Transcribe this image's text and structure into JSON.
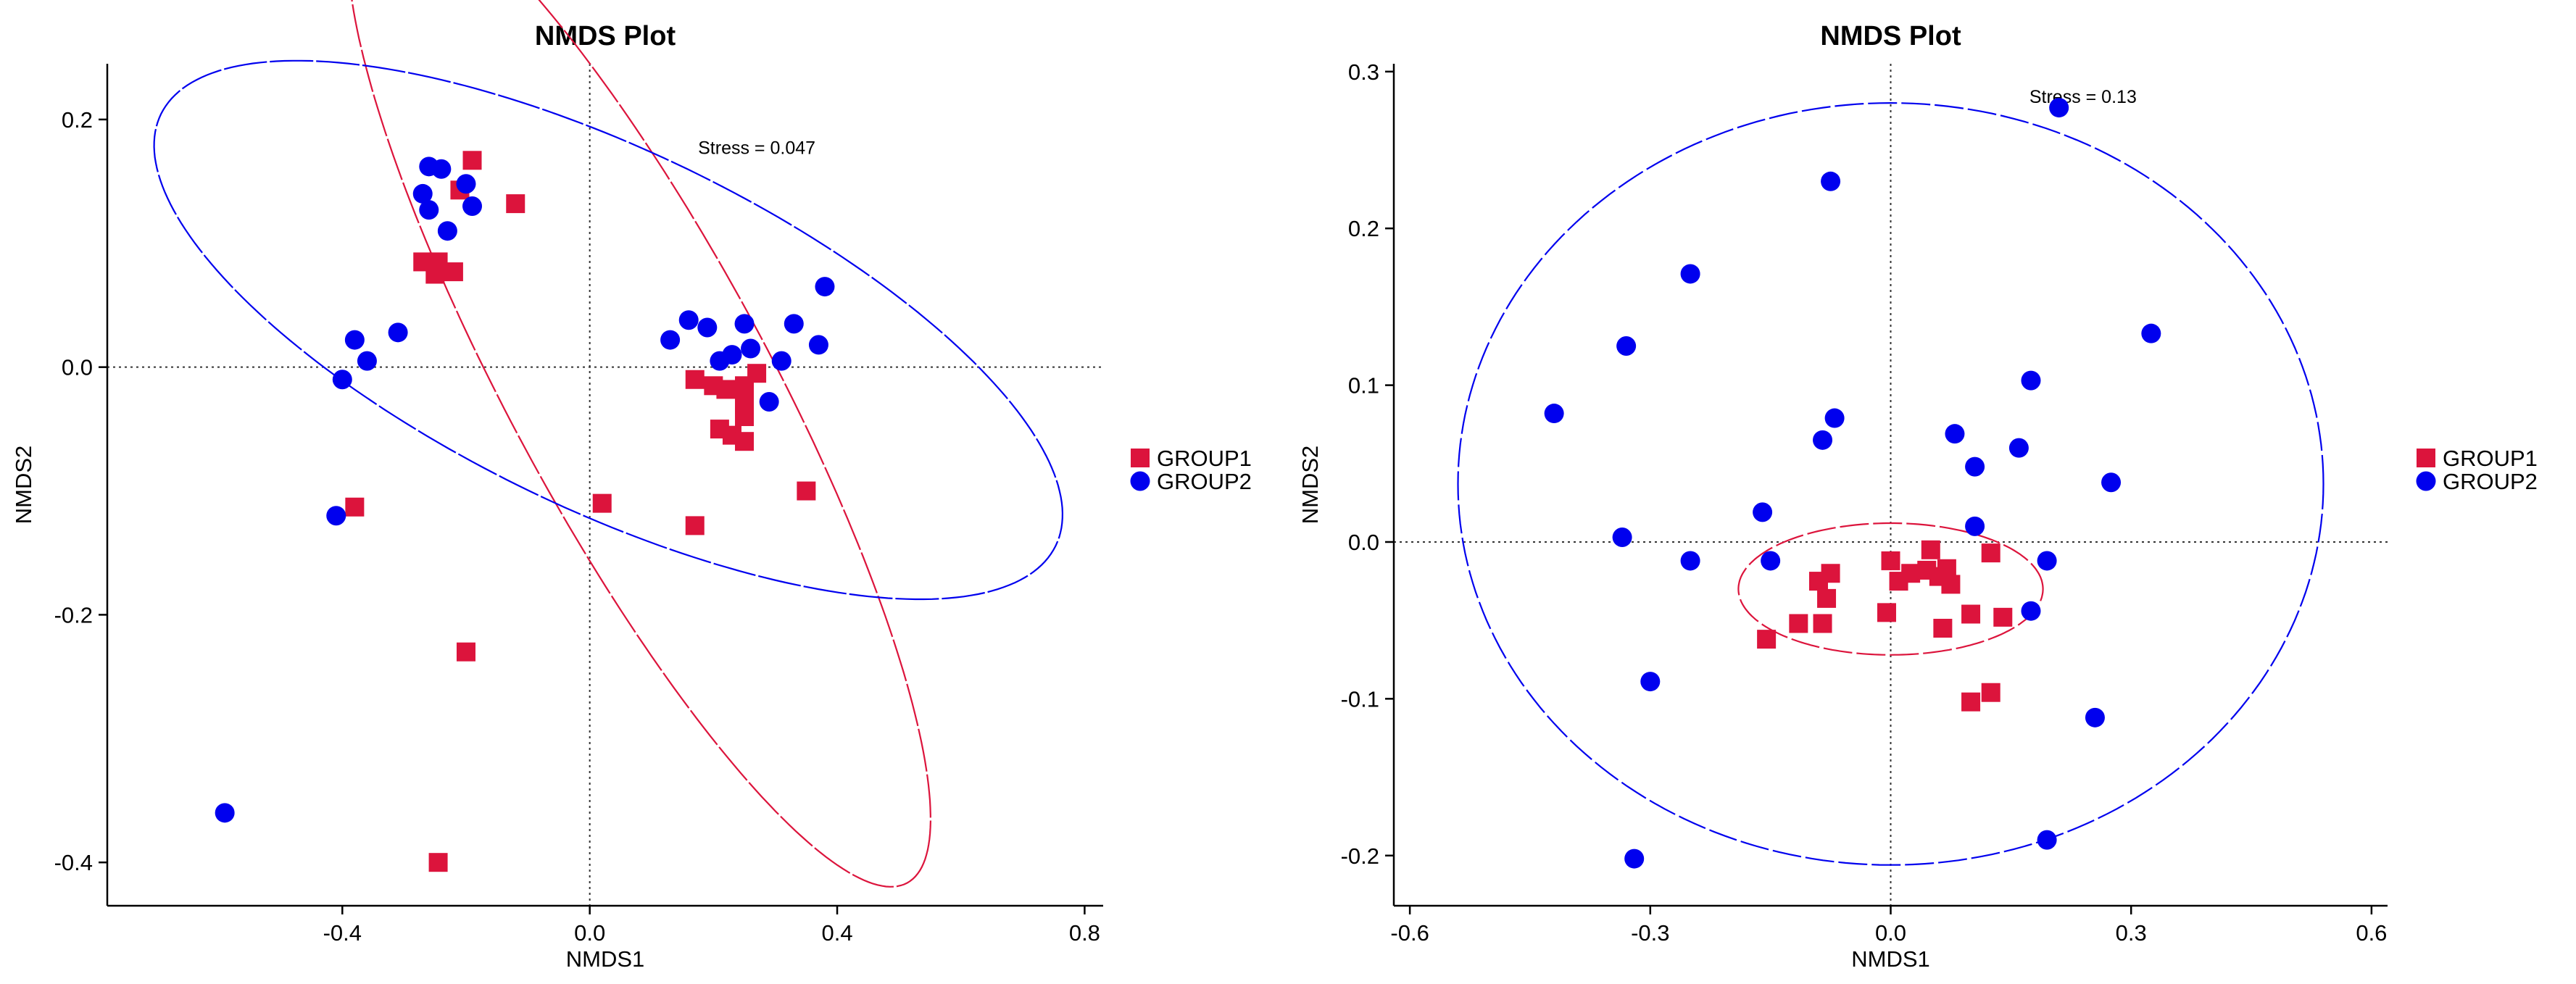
{
  "chart_data": [
    {
      "type": "scatter",
      "title": "NMDS Plot",
      "xlabel": "NMDS1",
      "ylabel": "NMDS2",
      "xlim": [
        -0.78,
        0.83
      ],
      "ylim": [
        -0.435,
        0.245
      ],
      "xticks": [
        -0.4,
        0.0,
        0.4,
        0.8
      ],
      "xtick_labels": [
        "-0.4",
        "0.0",
        "0.4",
        "0.8"
      ],
      "yticks": [
        -0.4,
        -0.2,
        0.0,
        0.2
      ],
      "ytick_labels": [
        "-0.4",
        "-0.2",
        "0.0",
        "0.2"
      ],
      "annotation": "Stress = 0.047",
      "annotation_pos": [
        0.27,
        0.172
      ],
      "zero_lines": true,
      "grid": false,
      "legend_position": "right",
      "series": [
        {
          "name": "GROUP1",
          "marker": "square",
          "color": "#dc143c",
          "points": [
            [
              -0.19,
              0.167
            ],
            [
              -0.21,
              0.143
            ],
            [
              -0.12,
              0.132
            ],
            [
              -0.27,
              0.085
            ],
            [
              -0.245,
              0.085
            ],
            [
              -0.25,
              0.075
            ],
            [
              -0.22,
              0.077
            ],
            [
              0.17,
              -0.01
            ],
            [
              0.2,
              -0.015
            ],
            [
              0.22,
              -0.018
            ],
            [
              0.25,
              -0.015
            ],
            [
              0.27,
              -0.005
            ],
            [
              0.25,
              -0.03
            ],
            [
              0.25,
              -0.04
            ],
            [
              0.21,
              -0.05
            ],
            [
              0.23,
              -0.055
            ],
            [
              0.25,
              -0.06
            ],
            [
              0.35,
              -0.1
            ],
            [
              0.02,
              -0.11
            ],
            [
              0.17,
              -0.128
            ],
            [
              -0.38,
              -0.113
            ],
            [
              -0.2,
              -0.23
            ],
            [
              -0.245,
              -0.4
            ]
          ]
        },
        {
          "name": "GROUP2",
          "marker": "circle",
          "color": "#0000ee",
          "points": [
            [
              -0.26,
              0.162
            ],
            [
              -0.24,
              0.16
            ],
            [
              -0.27,
              0.14
            ],
            [
              -0.2,
              0.148
            ],
            [
              -0.26,
              0.127
            ],
            [
              -0.19,
              0.13
            ],
            [
              -0.23,
              0.11
            ],
            [
              -0.31,
              0.028
            ],
            [
              -0.38,
              0.022
            ],
            [
              -0.36,
              0.005
            ],
            [
              -0.4,
              -0.01
            ],
            [
              0.16,
              0.038
            ],
            [
              0.19,
              0.032
            ],
            [
              0.25,
              0.035
            ],
            [
              0.33,
              0.035
            ],
            [
              0.38,
              0.065
            ],
            [
              0.13,
              0.022
            ],
            [
              0.23,
              0.01
            ],
            [
              0.21,
              0.005
            ],
            [
              0.26,
              0.015
            ],
            [
              0.31,
              0.005
            ],
            [
              0.37,
              0.018
            ],
            [
              0.29,
              -0.028
            ],
            [
              -0.41,
              -0.12
            ],
            [
              -0.59,
              -0.36
            ]
          ]
        }
      ],
      "ellipses": [
        {
          "group": "GROUP1",
          "color": "#dc143c",
          "center": [
            0.08,
            -0.015
          ],
          "semi_axes": [
            0.6,
            0.16
          ],
          "angle_deg": -40
        },
        {
          "group": "GROUP2",
          "color": "#0000ee",
          "center": [
            0.03,
            0.03
          ],
          "semi_axes": [
            0.75,
            0.155
          ],
          "angle_deg": -12
        }
      ]
    },
    {
      "type": "scatter",
      "title": "NMDS Plot",
      "xlabel": "NMDS1",
      "ylabel": "NMDS2",
      "xlim": [
        -0.62,
        0.62
      ],
      "ylim": [
        -0.232,
        0.305
      ],
      "xticks": [
        -0.6,
        -0.3,
        0.0,
        0.3,
        0.6
      ],
      "xtick_labels": [
        "-0.6",
        "-0.3",
        "0.0",
        "0.3",
        "0.6"
      ],
      "yticks": [
        -0.2,
        -0.1,
        0.0,
        0.1,
        0.2,
        0.3
      ],
      "ytick_labels": [
        "-0.2",
        "-0.1",
        "0.0",
        "0.1",
        "0.2",
        "0.3"
      ],
      "annotation": "Stress = 0.13",
      "annotation_pos": [
        0.24,
        0.28
      ],
      "zero_lines": true,
      "grid": false,
      "legend_position": "right",
      "series": [
        {
          "name": "GROUP1",
          "marker": "square",
          "color": "#dc143c",
          "points": [
            [
              -0.155,
              -0.062
            ],
            [
              -0.115,
              -0.052
            ],
            [
              -0.085,
              -0.052
            ],
            [
              -0.08,
              -0.036
            ],
            [
              -0.075,
              -0.02
            ],
            [
              -0.09,
              -0.025
            ],
            [
              -0.005,
              -0.045
            ],
            [
              0.0,
              -0.012
            ],
            [
              0.01,
              -0.025
            ],
            [
              0.025,
              -0.02
            ],
            [
              0.05,
              -0.005
            ],
            [
              0.045,
              -0.018
            ],
            [
              0.06,
              -0.022
            ],
            [
              0.07,
              -0.017
            ],
            [
              0.075,
              -0.027
            ],
            [
              0.065,
              -0.055
            ],
            [
              0.1,
              -0.046
            ],
            [
              0.125,
              -0.007
            ],
            [
              0.14,
              -0.048
            ],
            [
              0.1,
              -0.102
            ],
            [
              0.125,
              -0.096
            ]
          ]
        },
        {
          "name": "GROUP2",
          "marker": "circle",
          "color": "#0000ee",
          "points": [
            [
              0.21,
              0.277
            ],
            [
              -0.075,
              0.23
            ],
            [
              -0.25,
              0.171
            ],
            [
              -0.33,
              0.125
            ],
            [
              0.325,
              0.133
            ],
            [
              0.175,
              0.103
            ],
            [
              -0.42,
              0.082
            ],
            [
              -0.07,
              0.079
            ],
            [
              -0.085,
              0.065
            ],
            [
              0.08,
              0.069
            ],
            [
              0.16,
              0.06
            ],
            [
              0.105,
              0.048
            ],
            [
              0.275,
              0.038
            ],
            [
              -0.16,
              0.019
            ],
            [
              0.105,
              0.01
            ],
            [
              -0.335,
              0.003
            ],
            [
              -0.25,
              -0.012
            ],
            [
              -0.15,
              -0.012
            ],
            [
              0.195,
              -0.012
            ],
            [
              0.175,
              -0.044
            ],
            [
              -0.3,
              -0.089
            ],
            [
              0.255,
              -0.112
            ],
            [
              0.195,
              -0.19
            ],
            [
              -0.32,
              -0.202
            ]
          ]
        }
      ],
      "ellipses": [
        {
          "group": "GROUP1",
          "color": "#dc143c",
          "center": [
            0.0,
            -0.03
          ],
          "semi_axes": [
            0.19,
            0.042
          ],
          "angle_deg": 0
        },
        {
          "group": "GROUP2",
          "color": "#0000ee",
          "center": [
            0.0,
            0.037
          ],
          "semi_axes": [
            0.54,
            0.243
          ],
          "angle_deg": 0
        }
      ]
    }
  ]
}
